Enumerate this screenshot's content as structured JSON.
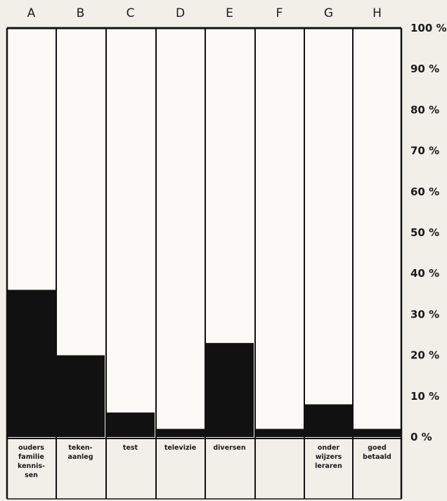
{
  "chart_data": {
    "type": "bar",
    "stacked_to_100": true,
    "columns": [
      "A",
      "B",
      "C",
      "D",
      "E",
      "F",
      "G",
      "H"
    ],
    "categories": [
      [
        "ouders",
        "familie",
        "kennis-",
        "sen"
      ],
      [
        "teken-",
        "aanleg"
      ],
      [
        "test"
      ],
      [
        "televizie"
      ],
      [
        "diversen"
      ],
      [],
      [
        "onder",
        "wijzers",
        "leraren"
      ],
      [
        "goed",
        "betaald"
      ]
    ],
    "values": [
      36,
      20,
      6,
      2,
      23,
      2,
      8,
      2
    ],
    "ylim": [
      0,
      100
    ],
    "y_ticks": [
      0,
      10,
      20,
      30,
      40,
      50,
      60,
      70,
      80,
      90,
      100
    ],
    "y_tick_labels": [
      "0 %",
      "10 %",
      "20 %",
      "30 %",
      "40 %",
      "50 %",
      "60 %",
      "70 %",
      "80 %",
      "90 %",
      "100 %"
    ],
    "grid": false,
    "legend": "none",
    "colors": {
      "filled": "#111111",
      "empty": "#fbfaf6",
      "background": "#f1efe8",
      "border": "#111111"
    }
  }
}
